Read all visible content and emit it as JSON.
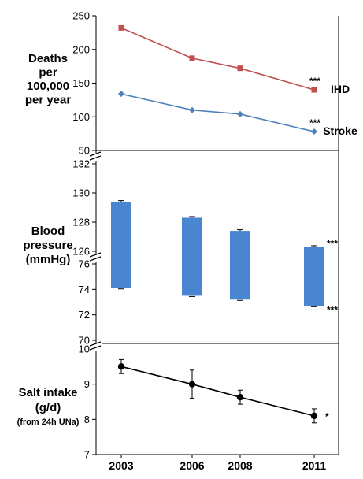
{
  "chart_data": [
    {
      "type": "line",
      "panel": "mortality",
      "ylabel": [
        "Deaths",
        "per",
        "100,000",
        "per year"
      ],
      "ylim": [
        50,
        250
      ],
      "yticks": [
        50,
        100,
        150,
        200,
        250
      ],
      "x": [
        2003,
        2006,
        2008,
        2011
      ],
      "series": [
        {
          "name": "IHD",
          "values": [
            232,
            187,
            172,
            140
          ],
          "color": "#c0504d",
          "marker": "square",
          "significance": "***"
        },
        {
          "name": "Stroke",
          "values": [
            134,
            110,
            104,
            78
          ],
          "color": "#4f81bd",
          "marker": "diamond",
          "significance": "***"
        }
      ]
    },
    {
      "type": "bar",
      "panel": "blood-pressure",
      "ylabel": [
        "Blood",
        "pressure",
        "(mmHg)"
      ],
      "broken_axis": true,
      "upper_ylim": [
        126,
        132
      ],
      "upper_yticks": [
        126,
        128,
        130,
        132
      ],
      "lower_ylim": [
        70,
        76
      ],
      "lower_yticks": [
        70,
        72,
        74,
        76
      ],
      "x": [
        2003,
        2006,
        2008,
        2011
      ],
      "color": "#4a86d0",
      "systolic": [
        129.4,
        128.3,
        127.4,
        126.3
      ],
      "diastolic": [
        74.1,
        73.5,
        73.2,
        72.7
      ],
      "systolic_significance": "***",
      "diastolic_significance": "***"
    },
    {
      "type": "line",
      "panel": "salt-intake",
      "ylabel": [
        "Salt intake",
        "(g/d)"
      ],
      "ylabel_note": "(from 24h UNa)",
      "ylim": [
        7,
        10
      ],
      "yticks": [
        7,
        8,
        9,
        10
      ],
      "x": [
        2003,
        2006,
        2008,
        2011
      ],
      "xticks": [
        "2003",
        "2006",
        "2008",
        "2011"
      ],
      "series": [
        {
          "values": [
            9.5,
            9.0,
            8.63,
            8.1
          ],
          "error": [
            0.2,
            0.4,
            0.2,
            0.2
          ],
          "color": "#000000",
          "marker": "circle",
          "significance": "*"
        }
      ]
    }
  ]
}
